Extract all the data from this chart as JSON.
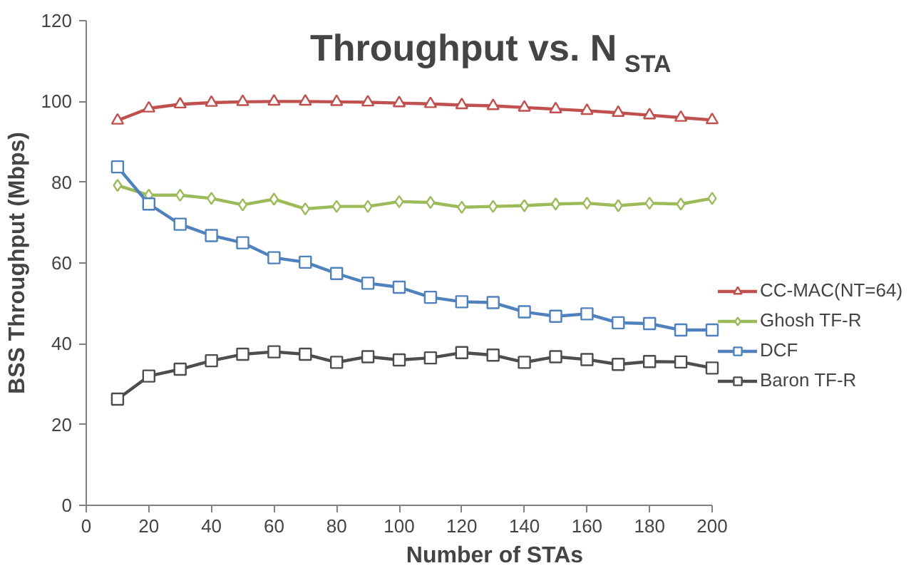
{
  "chart_data": {
    "type": "line",
    "title": "Throughput vs. N$_{STA}$",
    "xlabel": "Number of STAs",
    "ylabel": "BSS Throughput (Mbps)",
    "x": [
      10,
      20,
      30,
      40,
      50,
      60,
      70,
      80,
      90,
      100,
      110,
      120,
      130,
      140,
      150,
      160,
      170,
      180,
      190,
      200
    ],
    "series": [
      {
        "name": "CC-MAC(NT=64)",
        "color": "#c0504d",
        "marker": "triangle",
        "values": [
          95.3,
          98.3,
          99.3,
          99.7,
          99.9,
          100,
          100,
          99.9,
          99.8,
          99.6,
          99.4,
          99.1,
          98.9,
          98.5,
          98.1,
          97.7,
          97.2,
          96.6,
          96,
          95.4
        ]
      },
      {
        "name": "Ghosh TF-R",
        "color": "#9bbb59",
        "marker": "diamond",
        "values": [
          79.2,
          76.8,
          76.8,
          76.0,
          74.4,
          75.8,
          73.4,
          74.0,
          74.0,
          75.2,
          75.0,
          73.8,
          74.0,
          74.2,
          74.6,
          74.8,
          74.2,
          74.8,
          74.6,
          76.0
        ]
      },
      {
        "name": "DCF",
        "color": "#4f81bd",
        "marker": "square",
        "values": [
          83.8,
          74.6,
          69.6,
          66.8,
          65.0,
          61.3,
          60.2,
          57.4,
          55.0,
          54.0,
          51.5,
          50.4,
          50.2,
          47.9,
          46.8,
          47.4,
          45.2,
          45.0,
          43.4,
          43.4
        ]
      },
      {
        "name": "Baron TF-R",
        "color": "#4d4d4d",
        "marker": "square",
        "values": [
          26.3,
          32.0,
          33.7,
          35.8,
          37.4,
          38.0,
          37.4,
          35.4,
          36.8,
          36.0,
          36.5,
          37.8,
          37.2,
          35.4,
          36.8,
          36.1,
          34.9,
          35.6,
          35.5,
          34.0
        ]
      }
    ],
    "xlim": [
      0,
      200
    ],
    "xticks": [
      0,
      20,
      40,
      60,
      80,
      100,
      120,
      140,
      160,
      180,
      200
    ],
    "ylim": [
      0,
      120
    ],
    "yticks": [
      0,
      20,
      40,
      60,
      80,
      100,
      120
    ],
    "grid": false,
    "legend": "right",
    "line_style": "solid"
  }
}
